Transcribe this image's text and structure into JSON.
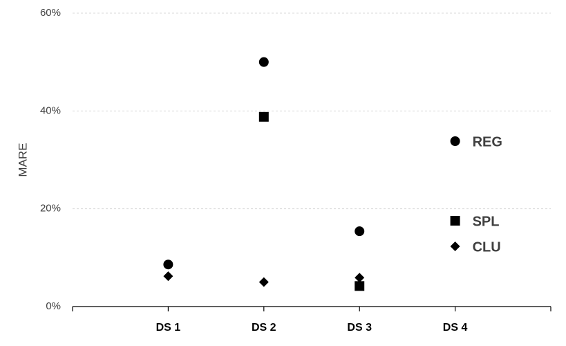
{
  "chart_data": {
    "type": "scatter",
    "y_label": "MARE",
    "categories": [
      "DS 1",
      "DS 2",
      "DS 3",
      "DS 4"
    ],
    "series": [
      {
        "name": "REG",
        "color": "#000000",
        "marker": "circle",
        "values": [
          8.6,
          50.0,
          15.4,
          null
        ]
      },
      {
        "name": "SPL",
        "color": "#000000",
        "marker": "square",
        "values": [
          null,
          38.8,
          4.2,
          null
        ]
      },
      {
        "name": "CLU",
        "color": "#000000",
        "marker": "diamond",
        "values": [
          6.2,
          5.0,
          5.9,
          null
        ]
      }
    ],
    "ylim": [
      0,
      60
    ],
    "yticks": [
      {
        "value": 0,
        "label": "0%"
      },
      {
        "value": 20,
        "label": "20%"
      },
      {
        "value": 40,
        "label": "40%"
      },
      {
        "value": 60,
        "label": "60%"
      }
    ],
    "grid": true,
    "legend": "right"
  }
}
